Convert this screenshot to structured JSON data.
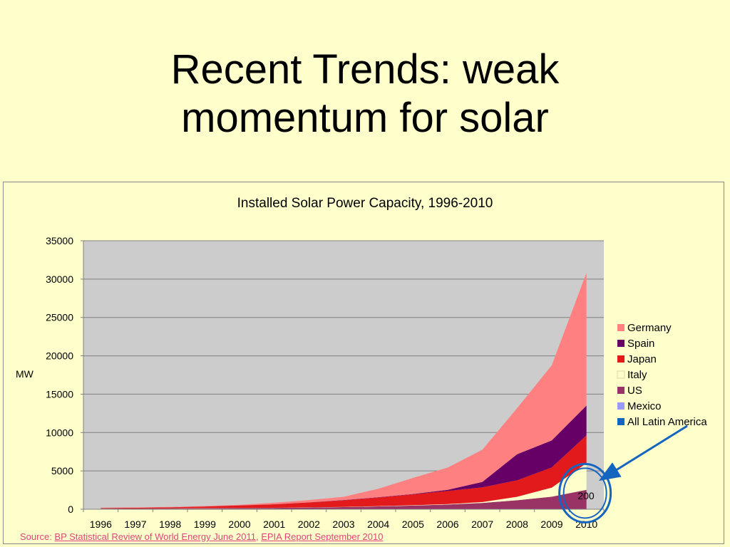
{
  "slide": {
    "title_line1": "Recent Trends: weak",
    "title_line2": "momentum for solar"
  },
  "source": {
    "prefix": "Source: ",
    "link1": "BP Statistical Review of World Energy June 2011",
    "separator": ", ",
    "link2": "EPIA Report September 2010"
  },
  "annotation": {
    "label": "200"
  },
  "colors": {
    "background": "#FFFFCC",
    "plot_area": "#CCCCCC",
    "arrow": "#1565C0"
  },
  "chart_data": {
    "type": "area",
    "stacked": true,
    "title": "Installed Solar Power Capacity, 1996-2010",
    "ylabel": "MW",
    "xlabel": "",
    "ylim": [
      0,
      35000
    ],
    "yticks": [
      0,
      5000,
      10000,
      15000,
      20000,
      25000,
      30000,
      35000
    ],
    "grid": true,
    "legend_position": "right",
    "categories": [
      "1996",
      "1997",
      "1998",
      "1999",
      "2000",
      "2001",
      "2002",
      "2003",
      "2004",
      "2005",
      "2006",
      "2007",
      "2008",
      "2009",
      "2010"
    ],
    "series": [
      {
        "name": "All Latin America",
        "color": "#1565C0",
        "values": [
          0,
          0,
          0,
          0,
          0,
          0,
          0,
          0,
          0,
          0,
          0,
          0,
          0,
          0,
          0
        ]
      },
      {
        "name": "Mexico",
        "color": "#9999FF",
        "values": [
          0,
          0,
          0,
          0,
          0,
          0,
          0,
          0,
          0,
          0,
          0,
          0,
          0,
          0,
          0
        ]
      },
      {
        "name": "US",
        "color": "#993366",
        "values": [
          80,
          90,
          100,
          120,
          140,
          170,
          220,
          280,
          370,
          480,
          620,
          820,
          1170,
          1640,
          2530
        ]
      },
      {
        "name": "Italy",
        "color": "#FFFFCC",
        "values": [
          15,
          15,
          16,
          18,
          19,
          20,
          22,
          26,
          31,
          37,
          50,
          120,
          460,
          1180,
          3480
        ]
      },
      {
        "name": "Japan",
        "color": "#E31A1C",
        "values": [
          60,
          90,
          130,
          210,
          330,
          450,
          640,
          860,
          1130,
          1420,
          1710,
          1920,
          2140,
          2630,
          3620
        ]
      },
      {
        "name": "Spain",
        "color": "#660066",
        "values": [
          7,
          7,
          8,
          9,
          10,
          11,
          14,
          24,
          35,
          50,
          150,
          700,
          3400,
          3520,
          3890
        ]
      },
      {
        "name": "Germany",
        "color": "#FF8080",
        "values": [
          30,
          40,
          50,
          60,
          80,
          200,
          300,
          430,
          1100,
          2100,
          2900,
          4200,
          6000,
          9800,
          17300
        ]
      }
    ],
    "legend_order": [
      "Germany",
      "Spain",
      "Japan",
      "Italy",
      "US",
      "Mexico",
      "All Latin America"
    ]
  }
}
